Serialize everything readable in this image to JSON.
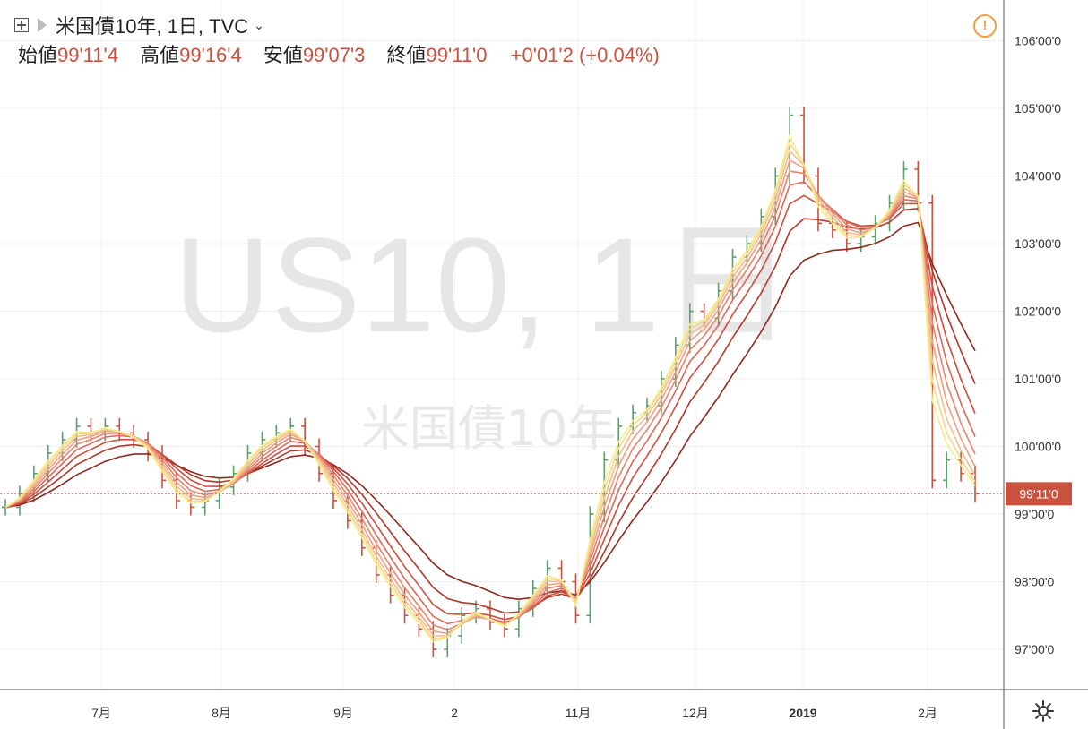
{
  "header": {
    "title": "米国債10年, 1日, TVC",
    "open_label": "始値",
    "open": "99'11'4",
    "high_label": "高値",
    "high": "99'16'4",
    "low_label": "安値",
    "low": "99'07'3",
    "close_label": "終値",
    "close": "99'11'0",
    "change": "+0'01'2",
    "change_pct": "(+0.04%)"
  },
  "watermark": {
    "symbol": "US10, 1日",
    "name": "米国債10年"
  },
  "price_tag": "99'11'0",
  "colors": {
    "up": "#5d9f6e",
    "down": "#c9523f",
    "price_line": "#e57373",
    "axis": "#333333",
    "alert": "#f0a040"
  },
  "chart_data": {
    "type": "line",
    "xlabel": "",
    "ylabel": "",
    "ylim": [
      96.6,
      106.4
    ],
    "y_ticks": [
      "97'00'0",
      "98'00'0",
      "99'00'0",
      "100'00'0",
      "101'00'0",
      "102'00'0",
      "103'00'0",
      "104'00'0",
      "105'00'0",
      "106'00'0"
    ],
    "x_ticks": [
      "7月",
      "8月",
      "9月",
      "2",
      "11月",
      "12月",
      "2019",
      "2月"
    ],
    "price_series": [
      99.1,
      99.3,
      99.6,
      99.9,
      100.1,
      100.3,
      100.2,
      100.3,
      100.2,
      100.1,
      99.9,
      99.5,
      99.2,
      99.1,
      99.2,
      99.4,
      99.6,
      99.9,
      100.1,
      100.2,
      100.3,
      100.0,
      99.6,
      99.2,
      98.9,
      98.5,
      98.1,
      97.8,
      97.5,
      97.3,
      97.0,
      97.2,
      97.5,
      97.6,
      97.4,
      97.3,
      97.6,
      97.9,
      98.2,
      98.0,
      97.5,
      99.0,
      99.8,
      100.3,
      100.5,
      100.6,
      101.0,
      101.5,
      102.0,
      101.9,
      102.3,
      102.8,
      103.0,
      103.4,
      104.0,
      104.9,
      104.0,
      103.3,
      103.2,
      103.0,
      103.1,
      103.3,
      103.6,
      104.1,
      103.6,
      99.5,
      99.8,
      99.6,
      99.3
    ]
  }
}
